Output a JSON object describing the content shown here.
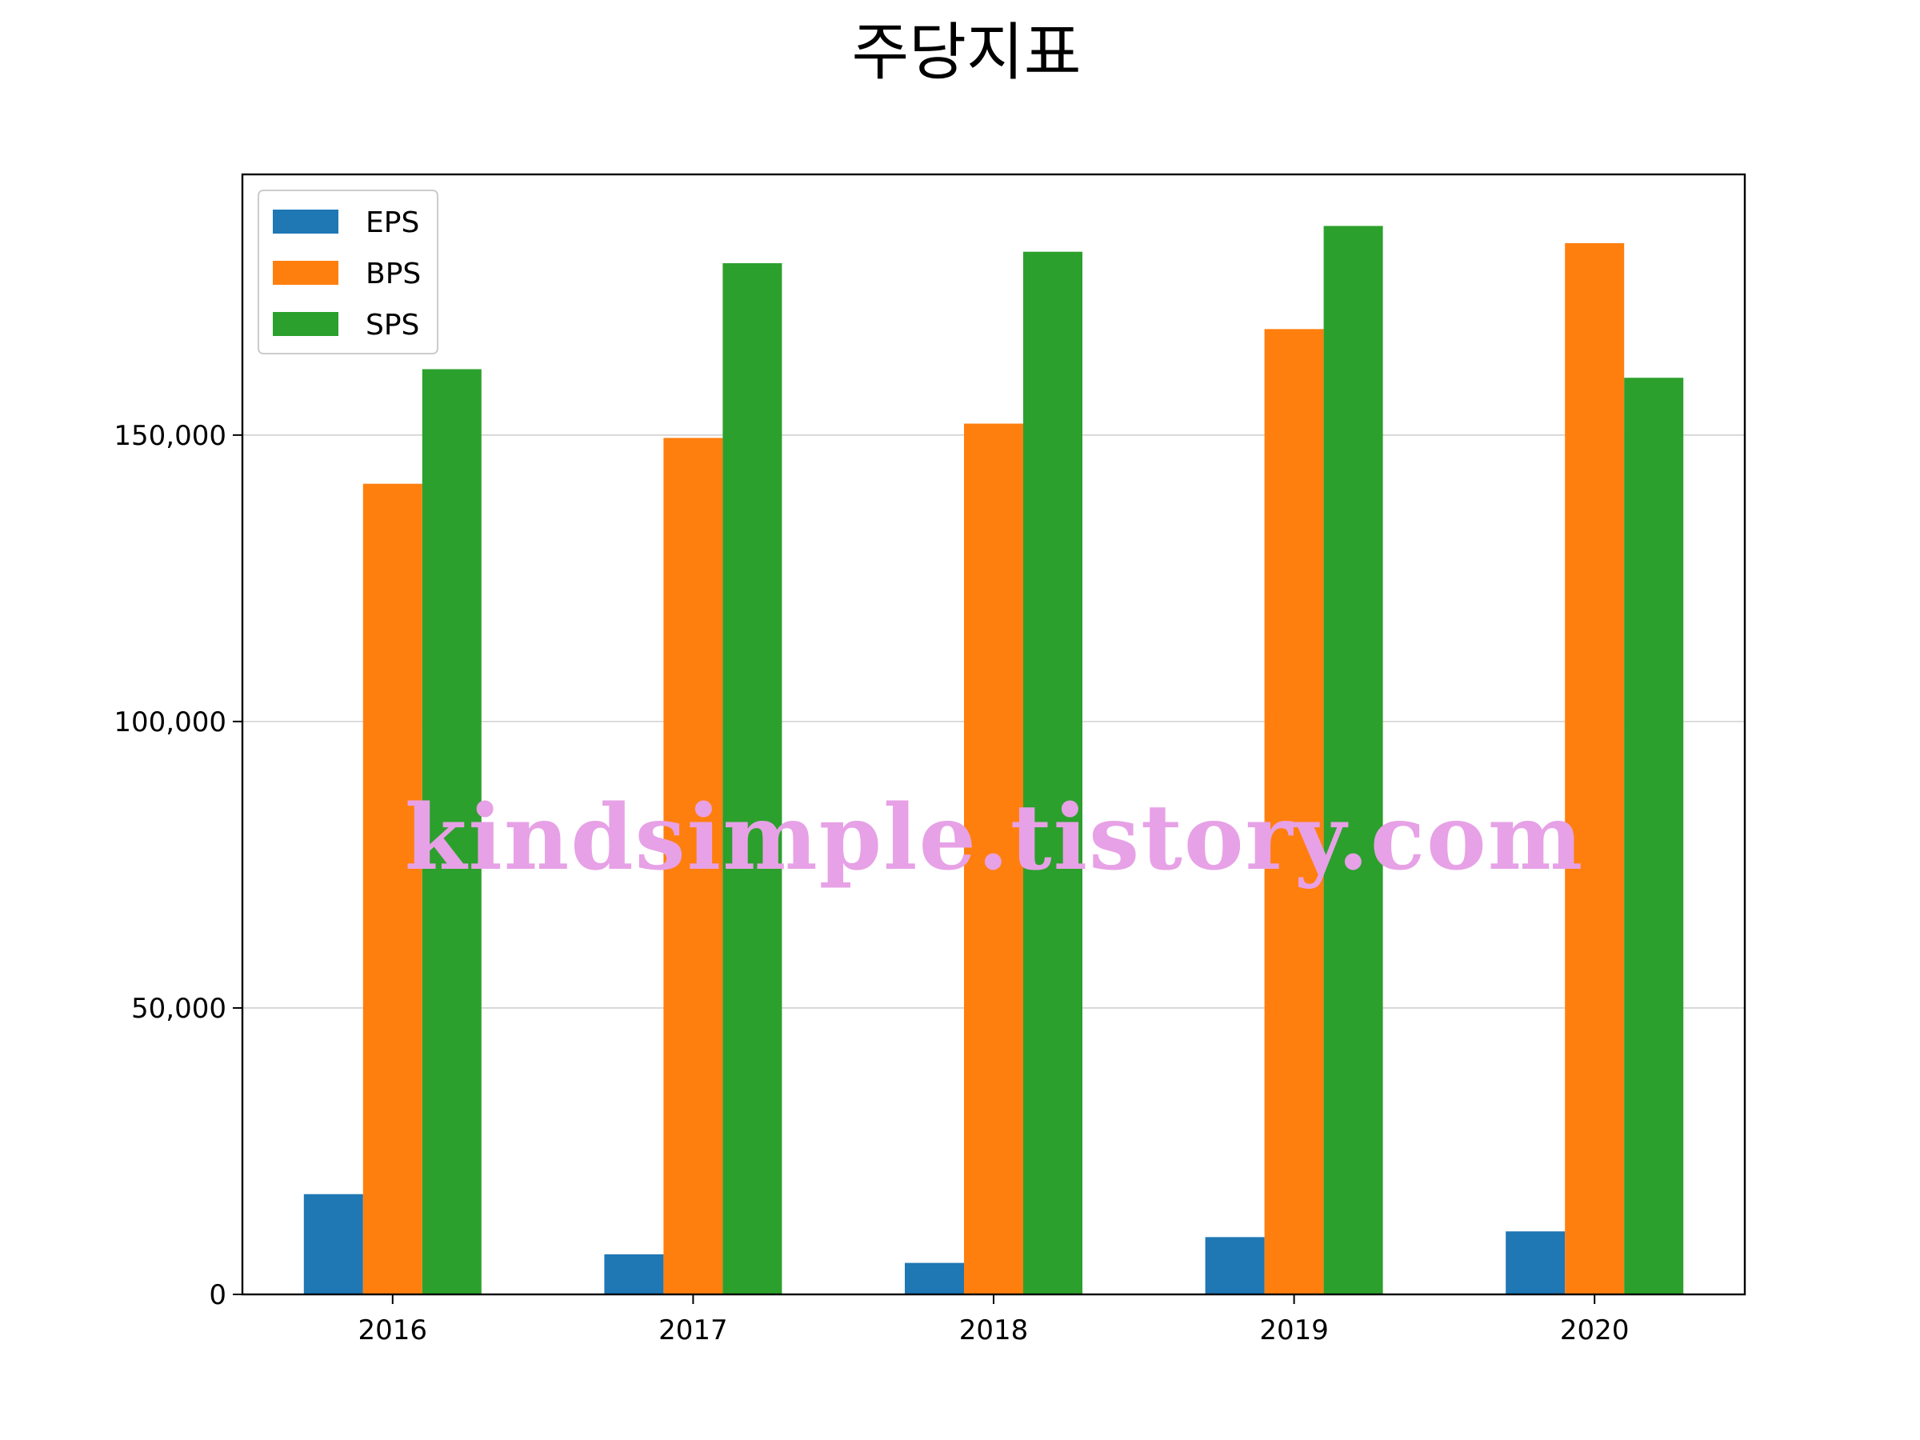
{
  "chart_data": {
    "type": "bar",
    "title": "주당지표",
    "xlabel": "",
    "ylabel": "",
    "categories": [
      "2016",
      "2017",
      "2018",
      "2019",
      "2020"
    ],
    "series": [
      {
        "name": "EPS",
        "color": "#1f77b4",
        "values": [
          17500,
          7000,
          5500,
          10000,
          11000
        ]
      },
      {
        "name": "BPS",
        "color": "#ff7f0e",
        "values": [
          141500,
          149500,
          152000,
          168500,
          183500
        ]
      },
      {
        "name": "SPS",
        "color": "#2ca02c",
        "values": [
          161500,
          180000,
          182000,
          186500,
          160000
        ]
      }
    ],
    "ylim": [
      0,
      195500
    ],
    "yticks": [
      0,
      50000,
      100000,
      150000
    ],
    "ytick_labels": [
      "0",
      "50,000",
      "100,000",
      "150,000"
    ],
    "grid": "horizontal",
    "legend_position": "top-left"
  },
  "watermark": "kindsimple.tistory.com"
}
